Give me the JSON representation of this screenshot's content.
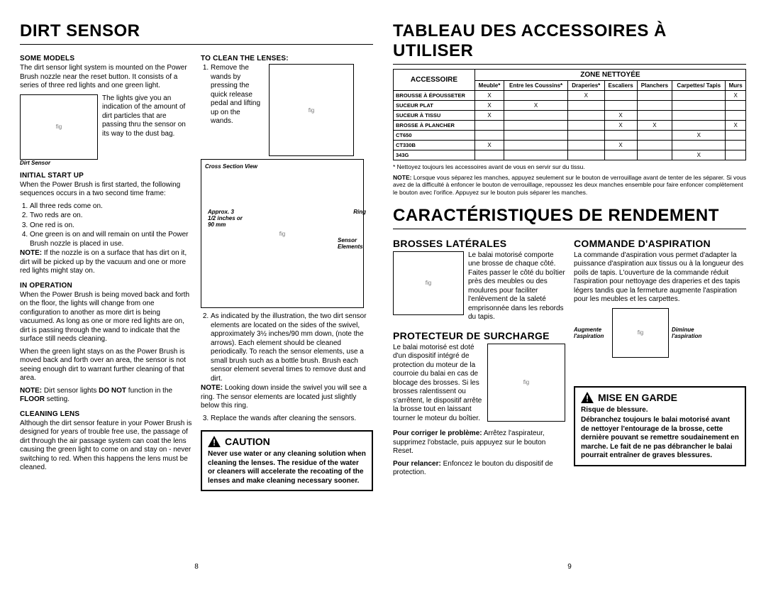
{
  "left": {
    "title": "DIRT SENSOR",
    "someModels": {
      "h": "SOME MODELS",
      "p1": "The dirt sensor light system is mounted on the Power Brush nozzle near the reset button. It consists of a series of three red lights and one green light.",
      "p2": "The lights give you an indication of the amount of dirt particles that are passing thru the sensor on its way to the dust bag.",
      "figCaption": "Dirt Sensor"
    },
    "initial": {
      "h": "INITIAL START UP",
      "p": "When the Power Brush is first started, the following sequences occurs in a two second time frame:",
      "items": [
        "All three reds come on.",
        "Two reds are on.",
        "One red is on.",
        "One green is on and will remain on until the Power Brush nozzle is placed in use."
      ],
      "note": "NOTE: If the nozzle is on a surface that has dirt on it, dirt will be picked up by the vacuum and one or more red lights might stay on."
    },
    "inOp": {
      "h": "IN OPERATION",
      "p1": "When the Power Brush is being moved back and forth on the floor, the lights will change from one configuration to another as more dirt is being vacuumed. As long as one or more red lights are on, dirt is passing through the wand to indicate that the surface still needs cleaning.",
      "p2": "When the green light stays on as the Power Brush is moved back and forth over an area, the sensor is not seeing enough dirt to warrant further cleaning of that area.",
      "note": "NOTE: Dirt sensor lights DO NOT function in the FLOOR setting."
    },
    "cleaningLens": {
      "h": "CLEANING LENS",
      "p": "Although the dirt sensor feature in your Power Brush is designed for years of trouble free use, the passage of dirt through the air passage system can coat the lens causing the green light to come on and stay on - never switching to red. When this happens the lens must be cleaned."
    },
    "toClean": {
      "h": "TO CLEAN THE LENSES:",
      "step1": "Remove the wands by pressing the quick release pedal and lifting up on the wands.",
      "crossSection": "Cross Section View",
      "approx": "Approx. 3 1/2 inches or 90 mm",
      "ring": "Ring",
      "sensor": "Sensor Elements",
      "step2": "As indicated by the illustration, the two dirt sensor elements are located on the sides of the swivel, approximately 3½ inches/90 mm down, (note the arrows). Each element should be cleaned periodically. To reach the sensor elements, use a small brush such as a bottle brush. Brush each sensor element several times to remove dust and dirt.",
      "note": "NOTE: Looking down inside the swivel you will see a ring. The sensor elements are located just slightly below this ring.",
      "step3": "Replace the wands after cleaning the sensors."
    },
    "caution": {
      "h": "CAUTION",
      "body": "Never use water or any cleaning solution when cleaning the lenses. The residue of the water or cleaners will accelerate the recoating of the lenses and make cleaning necessary sooner."
    },
    "pageNum": "8"
  },
  "right": {
    "title1": "TABLEAU DES ACCESSOIRES À UTILISER",
    "table": {
      "zone": "ZONE NETTOYÉE",
      "accessoire": "ACCESSOIRE",
      "cols": [
        "Meuble*",
        "Entre les Coussins*",
        "Draperies*",
        "Escaliers",
        "Planchers",
        "Carpettes/ Tapis",
        "Murs"
      ],
      "rows": [
        {
          "label": "BROUSSE À ÉPOUSSETER",
          "c": [
            "X",
            "",
            "X",
            "",
            "",
            "",
            "X"
          ]
        },
        {
          "label": "SUCEUR PLAT",
          "c": [
            "X",
            "X",
            "",
            "",
            "",
            "",
            ""
          ]
        },
        {
          "label": "SUCEUR À TISSU",
          "c": [
            "X",
            "",
            "",
            "X",
            "",
            "",
            ""
          ]
        },
        {
          "label": "BROSSE À PLANCHER",
          "c": [
            "",
            "",
            "",
            "X",
            "X",
            "",
            "X"
          ]
        },
        {
          "label": "CT650",
          "c": [
            "",
            "",
            "",
            "",
            "",
            "X",
            ""
          ]
        },
        {
          "label": "CT330B",
          "c": [
            "X",
            "",
            "",
            "X",
            "",
            "",
            ""
          ]
        },
        {
          "label": "343G",
          "c": [
            "",
            "",
            "",
            "",
            "",
            "X",
            ""
          ]
        }
      ],
      "foot1": "* Nettoyez toujours les accessoires avant de vous en servir sur du tissu.",
      "foot2": "NOTE: Lorsque vous séparez les manches, appuyez seulement sur le bouton de verrouillage avant de tenter de les séparer. Si vous avez de la difficulté à enfoncer le bouton de verrouillage, repoussez les deux manches ensemble pour faire enfoncer complètement le bouton avec l'orifice. Appuyez sur le bouton puis séparer les manches."
    },
    "title2": "CARACTÉRISTIQUES DE RENDEMENT",
    "brosses": {
      "h": "BROSSES LATÉRALES",
      "p": "Le balai motorisé comporte une brosse de chaque côté. Faites passer le côté du boîtier près des meubles ou des moulures pour faciliter l'enlèvement de la saleté emprisonnée dans les rebords du tapis."
    },
    "protecteur": {
      "h": "PROTECTEUR DE SURCHARGE",
      "p1": "Le balai motorisé est doté d'un dispositif intégré de protection du moteur de la courroie du balai en cas de blocage des brosses. Si les brosses ralentissent ou s'arrêtent, le dispositif arrête la brosse tout en laissant tourner le moteur du boîtier.",
      "p2": "Pour corriger le problème: Arrêtez l'aspirateur, supprimez l'obstacle, puis appuyez sur le bouton Reset.",
      "p3": "Pour relancer: Enfoncez le bouton du dispositif de protection."
    },
    "commande": {
      "h": "COMMANDE D'ASPIRATION",
      "p": "La commande d'aspiration vous permet d'adapter la puissance d'aspiration aux tissus ou à la longueur des poils de tapis. L'ouverture de la commande réduit l'aspiration pour nettoyage des draperies et des tapis légers tandis que la fermeture augmente l'aspiration pour les meubles et les carpettes.",
      "augLeft": "Augmente l'aspiration",
      "augRight": "Diminue l'aspiration"
    },
    "mise": {
      "h": "MISE EN GARDE",
      "risk": "Risque de blessure.",
      "body": "Débranchez toujours le balai motorisé avant de nettoyer l'entourage de la brosse, cette dernière pouvant se remettre soudainement en marche. Le fait de ne pas débrancher le balai pourrait entraîner de graves blessures."
    },
    "pageNum": "9"
  }
}
